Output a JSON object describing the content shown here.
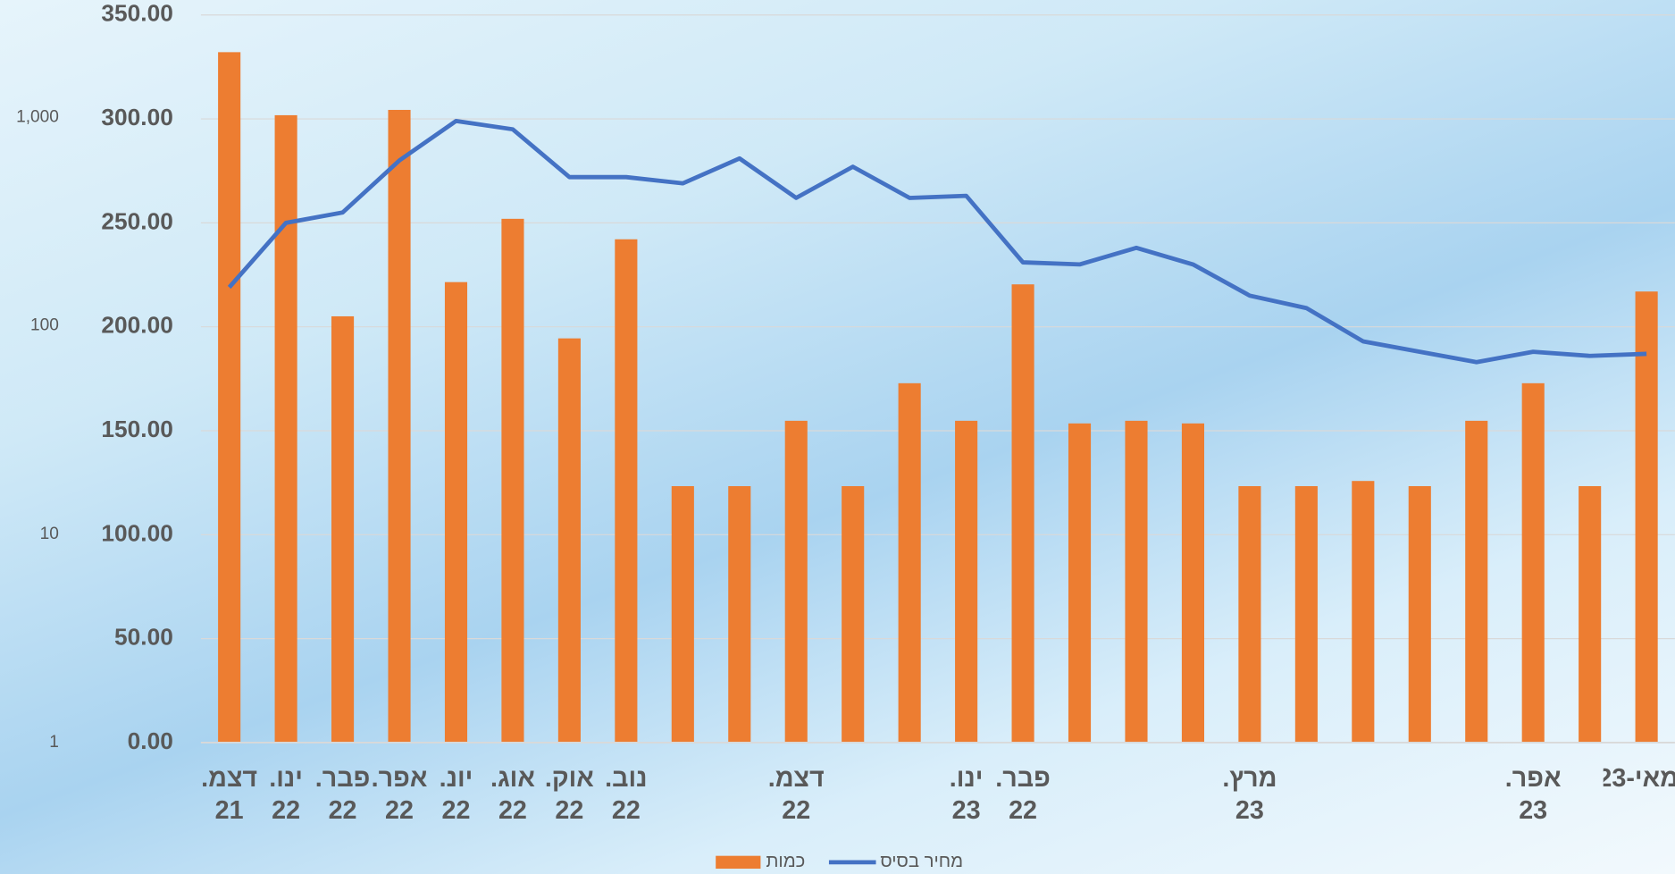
{
  "chart_data": {
    "type": "bar-line",
    "categories": [
      "דצמ. 21",
      "ינו. 22",
      "פבר. 22",
      "אפר. 22",
      "יונ. 22",
      "אוג. 22",
      "אוק. 22",
      "נוב. 22",
      null,
      null,
      "דצמ. 22",
      null,
      null,
      "ינו. 23",
      "פבר. 22",
      null,
      null,
      null,
      "מרץ. 23",
      null,
      null,
      null,
      null,
      "אפר. 23",
      null,
      "מאי-23"
    ],
    "series": [
      {
        "name": "כמות",
        "color": "#ed7d31",
        "axis": "y2",
        "values": [
          2055,
          1024,
          111,
          1086,
          162,
          326,
          87,
          260,
          17,
          17,
          35,
          17,
          53,
          35,
          158,
          34,
          35,
          34,
          17,
          17,
          18,
          17,
          35,
          53,
          17,
          146
        ]
      },
      {
        "name": "מחיר בסיס",
        "color": "#4472c4",
        "values": [
          219,
          250,
          255,
          280,
          299,
          295,
          272,
          272,
          269,
          281,
          262,
          277,
          262,
          263,
          231,
          230,
          238,
          230,
          215,
          209,
          193,
          188,
          183,
          188,
          186,
          187
        ]
      }
    ],
    "ylim": [
      0,
      350
    ],
    "yticks": [
      {
        "value": 0,
        "label": "0.00"
      },
      {
        "value": 50,
        "label": "50.00"
      },
      {
        "value": 100,
        "label": "100.00"
      },
      {
        "value": 150,
        "label": "150.00"
      },
      {
        "value": 200,
        "label": "200.00"
      },
      {
        "value": 250,
        "label": "250.00"
      },
      {
        "value": 300,
        "label": "300.00"
      },
      {
        "value": 350,
        "label": "350.00"
      }
    ],
    "y2lim": [
      1,
      3100
    ],
    "y2log": true,
    "y2ticks": [
      1,
      10,
      100,
      {
        "value": 1000,
        "label": "1,000"
      }
    ],
    "grid": true
  }
}
